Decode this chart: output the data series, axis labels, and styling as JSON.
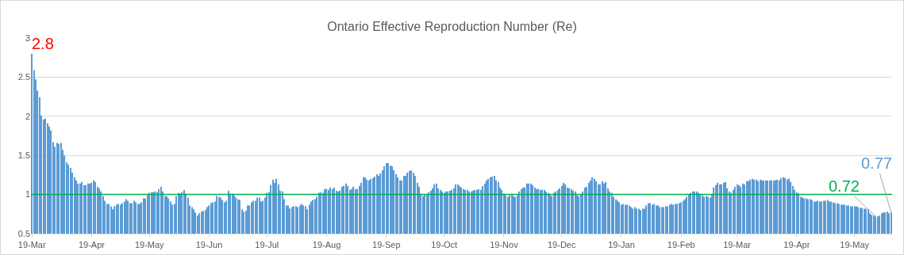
{
  "chart_data": {
    "type": "bar",
    "title": "Ontario Effective Reproduction Number (Re)",
    "color": "#5b9bd5",
    "categories": [
      "19-Mar",
      null,
      null,
      null,
      null,
      null,
      null,
      null,
      null,
      null,
      null,
      null,
      null,
      null,
      null,
      null,
      null,
      null,
      null,
      null,
      null,
      null,
      null,
      null,
      null,
      null,
      null,
      null,
      null,
      null,
      null,
      "19-Apr",
      null,
      null,
      null,
      null,
      null,
      null,
      null,
      null,
      null,
      null,
      null,
      null,
      null,
      null,
      null,
      null,
      null,
      null,
      null,
      null,
      null,
      null,
      null,
      null,
      null,
      null,
      null,
      null,
      null,
      "19-May",
      null,
      null,
      null,
      null,
      null,
      null,
      null,
      null,
      null,
      null,
      null,
      null,
      null,
      null,
      null,
      null,
      null,
      null,
      null,
      null,
      null,
      null,
      null,
      null,
      null,
      null,
      null,
      null,
      null,
      null,
      "19-Jun",
      null,
      null,
      null,
      null,
      null,
      null,
      null,
      null,
      null,
      null,
      null,
      null,
      null,
      null,
      null,
      null,
      null,
      null,
      null,
      null,
      null,
      null,
      null,
      null,
      null,
      null,
      null,
      null,
      null,
      "19-Jul",
      null,
      null,
      null,
      null,
      null,
      null,
      null,
      null,
      null,
      null,
      null,
      null,
      null,
      null,
      null,
      null,
      null,
      null,
      null,
      null,
      null,
      null,
      null,
      null,
      null,
      null,
      null,
      null,
      null,
      null,
      "19-Aug",
      null,
      null,
      null,
      null,
      null,
      null,
      null,
      null,
      null,
      null,
      null,
      null,
      null,
      null,
      null,
      null,
      null,
      null,
      null,
      null,
      null,
      null,
      null,
      null,
      null,
      null,
      null,
      null,
      null,
      null,
      "19-Sep",
      null,
      null,
      null,
      null,
      null,
      null,
      null,
      null,
      null,
      null,
      null,
      null,
      null,
      null,
      null,
      null,
      null,
      null,
      null,
      null,
      null,
      null,
      null,
      null,
      null,
      null,
      null,
      null,
      null,
      "19-Oct",
      null,
      null,
      null,
      null,
      null,
      null,
      null,
      null,
      null,
      null,
      null,
      null,
      null,
      null,
      null,
      null,
      null,
      null,
      null,
      null,
      null,
      null,
      null,
      null,
      null,
      null,
      null,
      null,
      null,
      null,
      "19-Nov",
      null,
      null,
      null,
      null,
      null,
      null,
      null,
      null,
      null,
      null,
      null,
      null,
      null,
      null,
      null,
      null,
      null,
      null,
      null,
      null,
      null,
      null,
      null,
      null,
      null,
      null,
      null,
      null,
      null,
      "19-Dec",
      null,
      null,
      null,
      null,
      null,
      null,
      null,
      null,
      null,
      null,
      null,
      null,
      null,
      null,
      null,
      null,
      null,
      null,
      null,
      null,
      null,
      null,
      null,
      null,
      null,
      null,
      null,
      null,
      null,
      null,
      "19-Jan",
      null,
      null,
      null,
      null,
      null,
      null,
      null,
      null,
      null,
      null,
      null,
      null,
      null,
      null,
      null,
      null,
      null,
      null,
      null,
      null,
      null,
      null,
      null,
      null,
      null,
      null,
      null,
      null,
      null,
      null,
      "19-Feb",
      null,
      null,
      null,
      null,
      null,
      null,
      null,
      null,
      null,
      null,
      null,
      null,
      null,
      null,
      null,
      null,
      null,
      null,
      null,
      null,
      null,
      null,
      null,
      null,
      null,
      null,
      null,
      null,
      "19-Mar",
      null,
      null,
      null,
      null,
      null,
      null,
      null,
      null,
      null,
      null,
      null,
      null,
      null,
      null,
      null,
      null,
      null,
      null,
      null,
      null,
      null,
      null,
      null,
      null,
      null,
      null,
      null,
      null,
      null,
      null,
      "19-Apr",
      null,
      null,
      null,
      null,
      null,
      null,
      null,
      null,
      null,
      null,
      null,
      null,
      null,
      null,
      null,
      null,
      null,
      null,
      null,
      null,
      null,
      null,
      null,
      null,
      null,
      null,
      null,
      null,
      null,
      "19-May",
      null,
      null,
      null,
      null,
      null,
      null,
      null,
      null,
      null,
      null,
      null,
      null,
      null,
      null,
      null,
      null,
      null,
      null,
      null
    ],
    "values": [
      2.8,
      2.59,
      2.47,
      2.33,
      2.24,
      2.01,
      1.96,
      1.97,
      1.91,
      1.87,
      1.82,
      1.67,
      1.61,
      1.66,
      1.65,
      1.66,
      1.57,
      1.5,
      1.41,
      1.38,
      1.34,
      1.28,
      1.22,
      1.18,
      1.14,
      1.14,
      1.16,
      1.12,
      1.12,
      1.14,
      1.14,
      1.15,
      1.18,
      1.16,
      1.1,
      1.08,
      1.04,
      0.98,
      0.92,
      0.88,
      0.88,
      0.85,
      0.81,
      0.85,
      0.87,
      0.88,
      0.87,
      0.89,
      0.91,
      0.94,
      0.92,
      0.89,
      0.89,
      0.92,
      0.9,
      0.88,
      0.88,
      0.9,
      0.95,
      0.95,
      0.99,
      1.02,
      1.03,
      1.03,
      1.04,
      1.03,
      1.07,
      1.1,
      1.04,
      0.98,
      0.98,
      0.95,
      0.91,
      0.87,
      0.88,
      0.98,
      1.02,
      1.01,
      1.03,
      1.06,
      1.01,
      0.96,
      0.86,
      0.84,
      0.81,
      0.77,
      0.73,
      0.76,
      0.78,
      0.79,
      0.8,
      0.84,
      0.86,
      0.89,
      0.9,
      0.91,
      0.98,
      0.97,
      0.96,
      0.93,
      0.9,
      0.92,
      1.05,
      1.01,
      1.01,
      0.99,
      0.96,
      0.94,
      0.93,
      0.81,
      0.78,
      0.79,
      0.86,
      0.86,
      0.9,
      0.92,
      0.92,
      0.96,
      0.96,
      0.91,
      0.92,
      0.96,
      1.02,
      1.03,
      1.12,
      1.19,
      1.15,
      1.2,
      1.13,
      1.05,
      1.04,
      0.94,
      0.86,
      0.86,
      0.82,
      0.84,
      0.85,
      0.85,
      0.84,
      0.86,
      0.88,
      0.86,
      0.85,
      0.81,
      0.87,
      0.91,
      0.93,
      0.94,
      0.97,
      1.02,
      1.03,
      1.02,
      1.07,
      1.07,
      1.06,
      1.09,
      1.07,
      1.09,
      1.05,
      1.04,
      1.05,
      1.1,
      1.11,
      1.14,
      1.11,
      1.06,
      1.07,
      1.1,
      1.07,
      1.07,
      1.11,
      1.15,
      1.22,
      1.22,
      1.19,
      1.18,
      1.2,
      1.21,
      1.23,
      1.26,
      1.24,
      1.27,
      1.31,
      1.36,
      1.4,
      1.4,
      1.37,
      1.36,
      1.31,
      1.26,
      1.22,
      1.18,
      1.18,
      1.24,
      1.24,
      1.28,
      1.3,
      1.31,
      1.28,
      1.24,
      1.15,
      1.1,
      1.01,
      0.98,
      1.0,
      1.0,
      1.03,
      1.05,
      1.08,
      1.13,
      1.14,
      1.08,
      1.06,
      1.04,
      1.02,
      1.04,
      1.04,
      1.05,
      1.06,
      1.08,
      1.13,
      1.13,
      1.11,
      1.09,
      1.07,
      1.06,
      1.06,
      1.04,
      1.04,
      1.05,
      1.06,
      1.06,
      1.07,
      1.06,
      1.11,
      1.14,
      1.18,
      1.2,
      1.22,
      1.23,
      1.24,
      1.18,
      1.16,
      1.09,
      1.06,
      1.01,
      0.99,
      0.97,
      0.99,
      1.01,
      0.98,
      0.97,
      0.99,
      1.04,
      1.07,
      1.09,
      1.09,
      1.14,
      1.14,
      1.14,
      1.12,
      1.09,
      1.07,
      1.07,
      1.06,
      1.06,
      1.06,
      1.04,
      1.02,
      1.0,
      0.98,
      1.02,
      1.04,
      1.06,
      1.08,
      1.11,
      1.15,
      1.13,
      1.09,
      1.08,
      1.07,
      1.05,
      1.04,
      0.99,
      0.98,
      1.0,
      1.04,
      1.09,
      1.1,
      1.15,
      1.18,
      1.22,
      1.2,
      1.17,
      1.13,
      1.13,
      1.17,
      1.14,
      1.16,
      1.08,
      1.04,
      1.02,
      0.97,
      0.94,
      0.92,
      0.9,
      0.87,
      0.88,
      0.87,
      0.87,
      0.86,
      0.84,
      0.82,
      0.84,
      0.82,
      0.82,
      0.8,
      0.82,
      0.82,
      0.86,
      0.89,
      0.89,
      0.87,
      0.88,
      0.86,
      0.86,
      0.84,
      0.84,
      0.84,
      0.85,
      0.85,
      0.87,
      0.88,
      0.87,
      0.88,
      0.88,
      0.89,
      0.9,
      0.92,
      0.94,
      0.97,
      1.0,
      1.02,
      1.04,
      1.04,
      1.04,
      1.02,
      1.01,
      0.99,
      0.97,
      0.98,
      0.97,
      0.96,
      1.0,
      1.09,
      1.12,
      1.15,
      1.13,
      1.13,
      1.15,
      1.16,
      1.08,
      1.04,
      1.02,
      1.06,
      1.1,
      1.13,
      1.12,
      1.1,
      1.14,
      1.13,
      1.17,
      1.17,
      1.19,
      1.2,
      1.19,
      1.19,
      1.17,
      1.19,
      1.18,
      1.18,
      1.18,
      1.18,
      1.18,
      1.18,
      1.18,
      1.18,
      1.19,
      1.18,
      1.21,
      1.22,
      1.21,
      1.19,
      1.2,
      1.16,
      1.11,
      1.06,
      1.03,
      1.01,
      0.97,
      0.96,
      0.95,
      0.95,
      0.94,
      0.94,
      0.93,
      0.91,
      0.91,
      0.92,
      0.91,
      0.91,
      0.92,
      0.92,
      0.93,
      0.91,
      0.91,
      0.9,
      0.89,
      0.89,
      0.88,
      0.87,
      0.87,
      0.87,
      0.86,
      0.86,
      0.85,
      0.85,
      0.85,
      0.85,
      0.84,
      0.83,
      0.83,
      0.82,
      0.82,
      0.81,
      0.76,
      0.74,
      0.73,
      0.72,
      0.72,
      0.73,
      0.76,
      0.77,
      0.77,
      0.78,
      0.76,
      0.77
    ],
    "value_labels": [
      "2.8",
      null,
      null,
      null,
      null,
      null,
      null,
      null,
      null,
      null,
      null,
      null,
      null,
      null,
      null,
      null,
      null,
      null,
      null,
      null,
      null,
      null,
      null,
      null,
      null,
      null,
      null,
      null,
      null,
      null,
      null,
      null,
      null,
      null,
      null,
      null,
      null,
      null,
      null,
      null,
      null,
      null,
      null,
      null,
      null,
      null,
      null,
      null,
      null,
      null,
      null,
      null,
      null,
      null,
      null,
      null,
      null,
      null,
      null,
      null,
      null,
      null,
      null,
      null,
      null,
      null,
      null,
      null,
      null,
      null,
      null,
      null,
      null,
      null,
      null,
      null,
      null,
      null,
      null,
      null,
      null,
      null,
      null,
      null,
      null,
      null,
      null,
      null,
      null,
      null,
      null,
      null,
      null,
      null,
      null,
      null,
      null,
      null,
      null,
      null,
      null,
      null,
      null,
      null,
      null,
      null,
      null,
      null,
      null,
      null,
      null,
      null,
      null,
      null,
      null,
      null,
      null,
      null,
      null,
      null,
      null,
      null,
      null,
      null,
      null,
      null,
      null,
      null,
      null,
      null,
      null,
      null,
      null,
      null,
      null,
      null,
      null,
      null,
      null,
      null,
      null,
      null,
      null,
      null,
      null,
      null,
      null,
      null,
      null,
      null,
      null,
      null,
      null,
      null,
      null,
      null,
      null,
      null,
      null,
      null,
      null,
      null,
      null,
      null,
      null,
      null,
      null,
      null,
      null,
      null,
      null,
      null,
      null,
      null,
      null,
      null,
      null,
      null,
      null,
      null,
      null,
      null,
      null,
      null,
      null,
      null,
      null,
      null,
      null,
      null,
      null,
      null,
      null,
      null,
      null,
      null,
      null,
      null,
      null,
      null,
      null,
      null,
      null,
      null,
      null,
      null,
      null,
      null,
      null,
      null,
      null,
      null,
      null,
      null,
      null,
      null,
      null,
      null,
      null,
      null,
      null,
      null,
      null,
      null,
      null,
      null,
      null,
      null,
      null,
      null,
      null,
      null,
      null,
      null,
      null,
      null,
      null,
      null,
      null,
      null,
      null,
      null,
      null,
      null,
      null,
      null,
      null,
      null,
      null,
      null,
      null,
      null,
      null,
      null,
      null,
      null,
      null,
      null,
      null,
      null,
      null,
      null,
      null,
      null,
      null,
      null,
      null,
      null,
      null,
      null,
      null,
      null,
      null,
      null,
      null,
      null,
      null,
      null,
      null,
      null,
      null,
      null,
      null,
      null,
      null,
      null,
      null,
      null,
      null,
      null,
      null,
      null,
      null,
      null,
      null,
      null,
      null,
      null,
      null,
      null,
      null,
      null,
      null,
      null,
      null,
      null,
      null,
      null,
      null,
      null,
      null,
      null,
      null,
      null,
      null,
      null,
      null,
      null,
      null,
      null,
      null,
      null,
      null,
      null,
      null,
      null,
      null,
      null,
      null,
      null,
      null,
      null,
      null,
      null,
      null,
      null,
      null,
      null,
      null,
      null,
      null,
      null,
      null,
      null,
      null,
      null,
      null,
      null,
      null,
      null,
      null,
      null,
      null,
      null,
      null,
      null,
      null,
      null,
      null,
      null,
      null,
      null,
      null,
      null,
      null,
      null,
      null,
      null,
      null,
      null,
      null,
      null,
      null,
      null,
      null,
      null,
      null,
      null,
      null,
      null,
      null,
      null,
      null,
      null,
      null,
      null,
      null,
      null,
      null,
      null,
      null,
      null,
      null,
      null,
      null,
      null,
      null,
      null,
      null,
      null,
      null,
      null,
      null,
      null,
      null,
      null,
      null,
      null,
      null,
      null,
      null,
      null,
      null,
      null,
      null,
      null,
      null,
      null,
      null,
      null,
      null,
      null,
      null,
      null,
      null,
      null,
      null,
      null,
      null,
      null,
      null,
      null,
      null,
      null,
      null,
      null,
      null,
      null,
      "0.72",
      null,
      null,
      null,
      null,
      null,
      null,
      null,
      "0.77"
    ],
    "ylim": [
      0.5,
      3
    ],
    "yticks": [
      0.5,
      1,
      1.5,
      2,
      2.5,
      3
    ],
    "grid": "y",
    "legend": false,
    "ref_lines": [
      {
        "axis": "y",
        "value": 1,
        "color": "#00b050"
      }
    ]
  }
}
